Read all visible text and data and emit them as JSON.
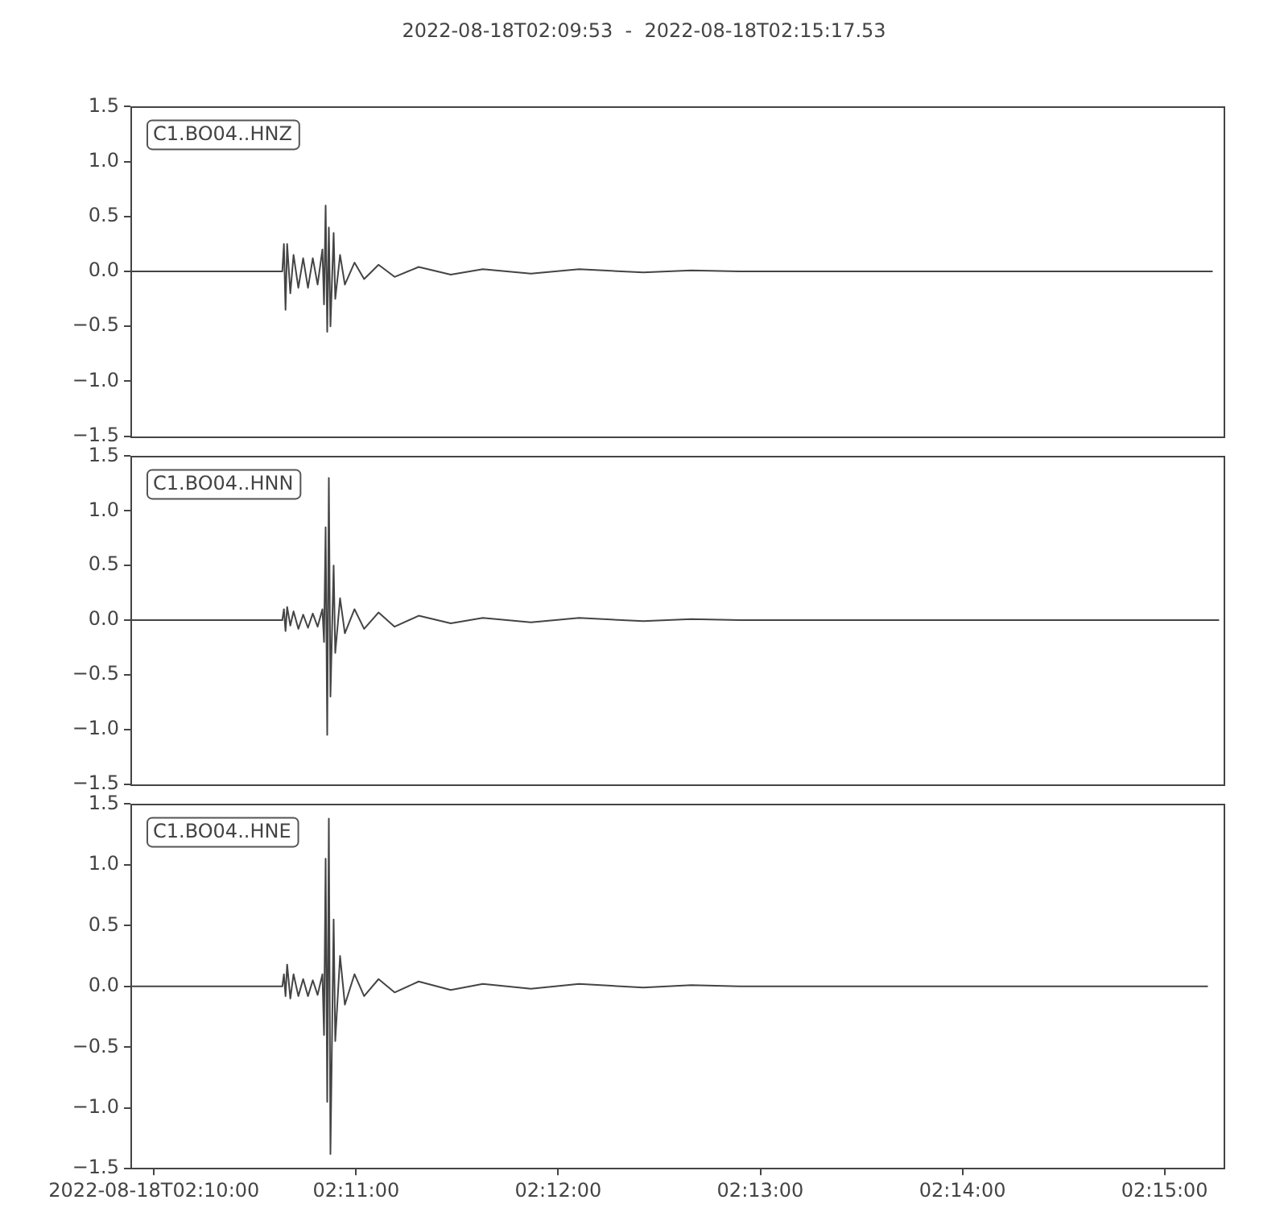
{
  "chart_data": [
    {
      "type": "line",
      "title": "2022-08-18T02:09:53  -  2022-08-18T02:15:17.53",
      "legend": "top left",
      "grid": false,
      "tick_labels": "y",
      "x": [
        2.164815,
        2.177249,
        2.177381,
        2.177513,
        2.177646,
        2.17791,
        2.178175,
        2.178571,
        2.178968,
        2.179365,
        2.179762,
        2.180159,
        2.180556,
        2.180688,
        2.18082,
        2.180952,
        2.181085,
        2.181217,
        2.181481,
        2.181614,
        2.182011,
        2.182407,
        2.183201,
        2.183995,
        2.185185,
        2.186508,
        2.188492,
        2.191138,
        2.193783,
        2.197751,
        2.20172,
        2.207011,
        2.210979,
        2.214947,
        2.253968
      ],
      "xlim": [
        2.164722,
        2.254869
      ],
      "ylim": [
        -1.5,
        1.5
      ],
      "yticks": [
        {
          "value": -1.5,
          "label": "−1.5"
        },
        {
          "value": -1,
          "label": "−1.0"
        },
        {
          "value": -0.5,
          "label": "−0.5"
        },
        {
          "value": 0,
          "label": "0.0"
        },
        {
          "value": 0.5,
          "label": "0.5"
        },
        {
          "value": 1,
          "label": "1.0"
        },
        {
          "value": 1.5,
          "label": "1.5"
        }
      ],
      "series": [
        {
          "name": "C1.BO04..HNZ",
          "color": "#444444",
          "values": [
            0,
            0,
            0.25,
            -0.35,
            0.25,
            -0.2,
            0.15,
            -0.15,
            0.12,
            -0.15,
            0.12,
            -0.12,
            0.2,
            -0.3,
            0.6,
            -0.55,
            0.4,
            -0.5,
            0.35,
            -0.25,
            0.15,
            -0.12,
            0.08,
            -0.07,
            0.06,
            -0.05,
            0.04,
            -0.03,
            0.02,
            -0.02,
            0.02,
            -0.01,
            0.01,
            0,
            0
          ]
        }
      ]
    },
    {
      "type": "line",
      "legend": "top left",
      "grid": false,
      "tick_labels": "y",
      "x": [
        2.164815,
        2.177249,
        2.177381,
        2.177513,
        2.177646,
        2.17791,
        2.178175,
        2.178571,
        2.178968,
        2.179365,
        2.179762,
        2.180159,
        2.180556,
        2.180688,
        2.18082,
        2.180952,
        2.181085,
        2.181217,
        2.181481,
        2.181614,
        2.182011,
        2.182407,
        2.183201,
        2.183995,
        2.185185,
        2.186508,
        2.188492,
        2.191138,
        2.193783,
        2.197751,
        2.20172,
        2.207011,
        2.210979,
        2.214947,
        2.254497
      ],
      "xlim": [
        2.164722,
        2.254869
      ],
      "ylim": [
        -1.5,
        1.5
      ],
      "yticks": [
        {
          "value": -1.5,
          "label": "−1.5"
        },
        {
          "value": -1,
          "label": "−1.0"
        },
        {
          "value": -0.5,
          "label": "−0.5"
        },
        {
          "value": 0,
          "label": "0.0"
        },
        {
          "value": 0.5,
          "label": "0.5"
        },
        {
          "value": 1,
          "label": "1.0"
        },
        {
          "value": 1.5,
          "label": "1.5"
        }
      ],
      "series": [
        {
          "name": "C1.BO04..HNN",
          "color": "#444444",
          "values": [
            0,
            0,
            0.1,
            -0.1,
            0.12,
            -0.05,
            0.08,
            -0.08,
            0.05,
            -0.07,
            0.06,
            -0.06,
            0.1,
            -0.2,
            0.85,
            -1.05,
            1.3,
            -0.7,
            0.5,
            -0.3,
            0.2,
            -0.12,
            0.1,
            -0.08,
            0.07,
            -0.06,
            0.04,
            -0.03,
            0.02,
            -0.02,
            0.02,
            -0.01,
            0.01,
            0,
            0
          ]
        }
      ]
    },
    {
      "type": "line",
      "legend": "top left",
      "grid": false,
      "x": [
        2.164815,
        2.177249,
        2.177381,
        2.177513,
        2.177646,
        2.17791,
        2.178175,
        2.178571,
        2.178968,
        2.179365,
        2.179762,
        2.180159,
        2.180556,
        2.180688,
        2.18082,
        2.180952,
        2.181085,
        2.181217,
        2.181481,
        2.181614,
        2.182011,
        2.182407,
        2.183201,
        2.183995,
        2.185185,
        2.186508,
        2.188492,
        2.191138,
        2.193783,
        2.197751,
        2.20172,
        2.207011,
        2.210979,
        2.214947,
        2.253571
      ],
      "xlim": [
        2.164722,
        2.254869
      ],
      "xticks": [
        {
          "value": 2.1666667,
          "label": "2022-08-18T02:10:00"
        },
        {
          "value": 2.1833333,
          "label": "02:11:00"
        },
        {
          "value": 2.2,
          "label": "02:12:00"
        },
        {
          "value": 2.2166667,
          "label": "02:13:00"
        },
        {
          "value": 2.2333333,
          "label": "02:14:00"
        },
        {
          "value": 2.25,
          "label": "02:15:00"
        }
      ],
      "ylim": [
        -1.5,
        1.5
      ],
      "yticks": [
        {
          "value": -1.5,
          "label": "−1.5"
        },
        {
          "value": -1,
          "label": "−1.0"
        },
        {
          "value": -0.5,
          "label": "−0.5"
        },
        {
          "value": 0,
          "label": "0.0"
        },
        {
          "value": 0.5,
          "label": "0.5"
        },
        {
          "value": 1,
          "label": "1.0"
        },
        {
          "value": 1.5,
          "label": "1.5"
        }
      ],
      "series": [
        {
          "name": "C1.BO04..HNE",
          "color": "#444444",
          "values": [
            0,
            0,
            0.1,
            -0.08,
            0.18,
            -0.1,
            0.1,
            -0.08,
            0.06,
            -0.08,
            0.05,
            -0.07,
            0.1,
            -0.4,
            1.05,
            -0.95,
            1.38,
            -1.38,
            0.55,
            -0.45,
            0.25,
            -0.15,
            0.1,
            -0.08,
            0.06,
            -0.05,
            0.04,
            -0.03,
            0.02,
            -0.02,
            0.02,
            -0.01,
            0.01,
            0,
            0
          ]
        }
      ]
    }
  ]
}
